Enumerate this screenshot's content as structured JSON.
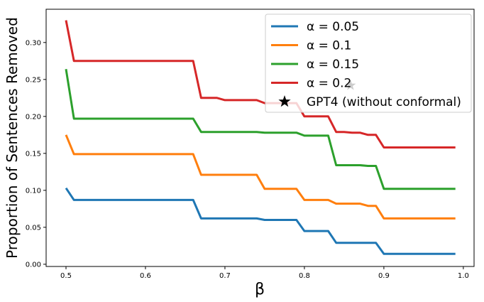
{
  "chart_data": {
    "type": "line",
    "title": "",
    "xlabel": "β",
    "ylabel": "Proportion of Sentences Removed",
    "xlim": [
      0.475,
      1.0135
    ],
    "ylim": [
      -0.003,
      0.345
    ],
    "xticks": [
      "0.5",
      "0.6",
      "0.7",
      "0.8",
      "0.9",
      "1.0"
    ],
    "yticks": [
      "0.00",
      "0.05",
      "0.10",
      "0.15",
      "0.20",
      "0.25",
      "0.30"
    ],
    "legend_position": "top-right",
    "x_start": 0.5,
    "x_step": 0.01,
    "series": [
      {
        "name": "α = 0.05",
        "color": "#1f77b4",
        "values": [
          0.103,
          0.087,
          0.087,
          0.087,
          0.087,
          0.087,
          0.087,
          0.087,
          0.087,
          0.087,
          0.087,
          0.087,
          0.087,
          0.087,
          0.087,
          0.087,
          0.087,
          0.062,
          0.062,
          0.062,
          0.062,
          0.062,
          0.062,
          0.062,
          0.062,
          0.06,
          0.06,
          0.06,
          0.06,
          0.06,
          0.045,
          0.045,
          0.045,
          0.045,
          0.029,
          0.029,
          0.029,
          0.029,
          0.029,
          0.029,
          0.014,
          0.014,
          0.014,
          0.014,
          0.014,
          0.014,
          0.014,
          0.014,
          0.014,
          0.014
        ]
      },
      {
        "name": "α = 0.1",
        "color": "#ff7f0e",
        "values": [
          0.175,
          0.149,
          0.149,
          0.149,
          0.149,
          0.149,
          0.149,
          0.149,
          0.149,
          0.149,
          0.149,
          0.149,
          0.149,
          0.149,
          0.149,
          0.149,
          0.149,
          0.121,
          0.121,
          0.121,
          0.121,
          0.121,
          0.121,
          0.121,
          0.121,
          0.102,
          0.102,
          0.102,
          0.102,
          0.102,
          0.087,
          0.087,
          0.087,
          0.087,
          0.082,
          0.082,
          0.082,
          0.082,
          0.079,
          0.079,
          0.062,
          0.062,
          0.062,
          0.062,
          0.062,
          0.062,
          0.062,
          0.062,
          0.062,
          0.062
        ]
      },
      {
        "name": "α = 0.15",
        "color": "#2ca02c",
        "values": [
          0.264,
          0.197,
          0.197,
          0.197,
          0.197,
          0.197,
          0.197,
          0.197,
          0.197,
          0.197,
          0.197,
          0.197,
          0.197,
          0.197,
          0.197,
          0.197,
          0.197,
          0.179,
          0.179,
          0.179,
          0.179,
          0.179,
          0.179,
          0.179,
          0.179,
          0.178,
          0.178,
          0.178,
          0.178,
          0.178,
          0.174,
          0.174,
          0.174,
          0.174,
          0.134,
          0.134,
          0.134,
          0.134,
          0.133,
          0.133,
          0.102,
          0.102,
          0.102,
          0.102,
          0.102,
          0.102,
          0.102,
          0.102,
          0.102,
          0.102
        ]
      },
      {
        "name": "α = 0.2",
        "color": "#d62728",
        "values": [
          0.33,
          0.275,
          0.275,
          0.275,
          0.275,
          0.275,
          0.275,
          0.275,
          0.275,
          0.275,
          0.275,
          0.275,
          0.275,
          0.275,
          0.275,
          0.275,
          0.275,
          0.225,
          0.225,
          0.225,
          0.222,
          0.222,
          0.222,
          0.222,
          0.222,
          0.218,
          0.218,
          0.218,
          0.218,
          0.218,
          0.2,
          0.2,
          0.2,
          0.2,
          0.179,
          0.179,
          0.178,
          0.178,
          0.175,
          0.175,
          0.158,
          0.158,
          0.158,
          0.158,
          0.158,
          0.158,
          0.158,
          0.158,
          0.158,
          0.158
        ]
      }
    ],
    "points": [
      {
        "name": "GPT4 (without conformal)",
        "x": 0.858,
        "y": 0.242,
        "color": "#000000"
      }
    ]
  }
}
